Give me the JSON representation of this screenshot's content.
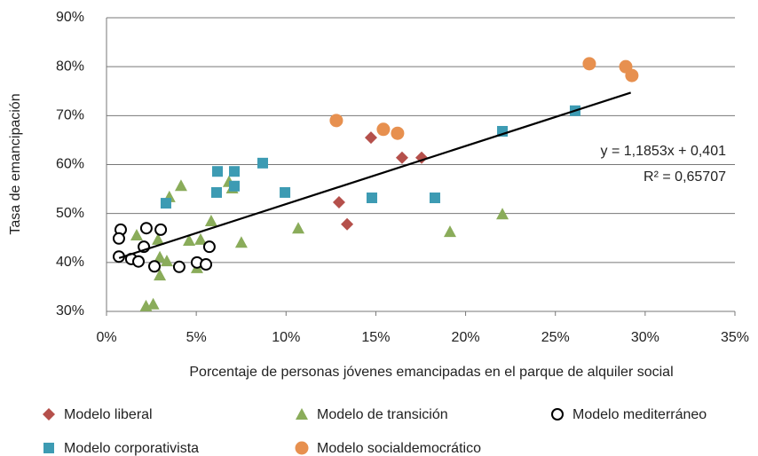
{
  "chart_data": {
    "type": "scatter",
    "x_label": "Porcentaje de personas jóvenes emancipadas en el parque de alquiler social",
    "y_label": "Tasa de emancipación",
    "xlim": [
      0,
      35
    ],
    "xticks": [
      {
        "value": 0,
        "label": "0%"
      },
      {
        "value": 5,
        "label": "5%"
      },
      {
        "value": 10,
        "label": "10%"
      },
      {
        "value": 15,
        "label": "15%"
      },
      {
        "value": 20,
        "label": "20%"
      },
      {
        "value": 25,
        "label": "25%"
      },
      {
        "value": 30,
        "label": "30%"
      },
      {
        "value": 35,
        "label": "35%"
      }
    ],
    "ylim": [
      30,
      90
    ],
    "yticks": [
      {
        "value": 30,
        "label": "30%"
      },
      {
        "value": 40,
        "label": "40%"
      },
      {
        "value": 50,
        "label": "50%"
      },
      {
        "value": 60,
        "label": "60%"
      },
      {
        "value": 70,
        "label": "70%"
      },
      {
        "value": 80,
        "label": "80%"
      },
      {
        "value": 90,
        "label": "90%"
      }
    ],
    "grid": true,
    "legend": "bottom",
    "series": [
      {
        "name": "Modelo liberal",
        "color": "#b5504b",
        "marker": "diamond",
        "x": [
          14.73,
          16.46,
          17.55,
          12.95,
          13.4
        ],
        "values": [
          65.5,
          61.4,
          61.4,
          52.3,
          47.8
        ]
      },
      {
        "name": "Modelo de transición",
        "color": "#8aac5a",
        "marker": "triangle",
        "x": [
          1.68,
          2.2,
          2.6,
          2.87,
          2.97,
          2.97,
          3.36,
          3.5,
          4.15,
          4.6,
          5.04,
          5.24,
          5.83,
          6.82,
          7.0,
          7.51,
          10.68,
          19.13,
          22.05
        ],
        "values": [
          45.6,
          31.1,
          31.5,
          44.7,
          41.1,
          37.4,
          40.3,
          53.4,
          55.7,
          44.5,
          38.9,
          44.7,
          48.5,
          56.5,
          55.2,
          44.1,
          47.0,
          46.3,
          49.9
        ]
      },
      {
        "name": "Modelo mediterráneo",
        "color": "#000000",
        "marker": "circle-open",
        "x": [
          0.79,
          0.69,
          0.69,
          1.38,
          1.78,
          2.08,
          2.22,
          3.02,
          2.67,
          4.05,
          5.04,
          5.54,
          5.73
        ],
        "values": [
          46.7,
          44.9,
          41.2,
          40.7,
          40.2,
          43.2,
          47.0,
          46.7,
          39.2,
          39.1,
          40.0,
          39.6,
          43.2
        ]
      },
      {
        "name": "Modelo corporativista",
        "color": "#3d9bb3",
        "marker": "square",
        "x": [
          3.31,
          6.18,
          7.12,
          6.13,
          7.12,
          8.7,
          9.94,
          14.78,
          18.29,
          22.05,
          26.1
        ],
        "values": [
          52.1,
          58.6,
          58.6,
          54.3,
          55.6,
          60.3,
          54.3,
          53.2,
          53.2,
          66.8,
          71.0
        ]
      },
      {
        "name": "Modelo socialdemocrático",
        "color": "#e7904f",
        "marker": "circle",
        "x": [
          12.8,
          15.42,
          16.21,
          26.89,
          28.92,
          29.26
        ],
        "values": [
          69.0,
          67.2,
          66.4,
          80.6,
          80.0,
          78.2
        ]
      }
    ],
    "trendline": {
      "x": [
        0.7,
        29.2
      ],
      "values": [
        40.9,
        74.7
      ],
      "color": "#000000"
    },
    "annotations": [
      "y = 1,1853x + 0,401",
      "R² = 0,65707"
    ]
  }
}
